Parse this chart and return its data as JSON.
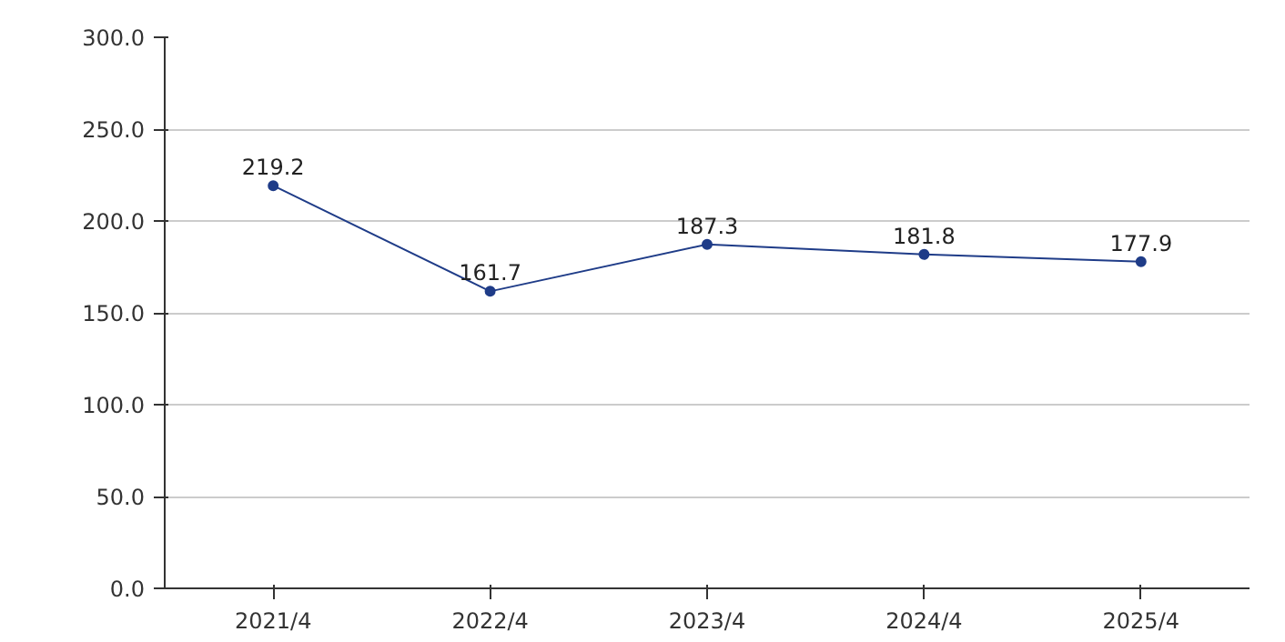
{
  "chart_data": {
    "type": "line",
    "categories": [
      "2021/4",
      "2022/4",
      "2023/4",
      "2024/4",
      "2025/4"
    ],
    "series": [
      {
        "color": "#1f3c88",
        "values": [
          219.2,
          161.7,
          187.3,
          181.8,
          177.9
        ]
      }
    ],
    "ylim": [
      0,
      300
    ],
    "yticks": [
      {
        "value": 0,
        "label": "0.0"
      },
      {
        "value": 50,
        "label": "50.0"
      },
      {
        "value": 100,
        "label": "100.0"
      },
      {
        "value": 150,
        "label": "150.0"
      },
      {
        "value": 200,
        "label": "200.0"
      },
      {
        "value": 250,
        "label": "250.0"
      },
      {
        "value": 300,
        "label": "300.0"
      }
    ],
    "grid": "y",
    "marker": "circle",
    "line_style": "solid",
    "data_labels": true
  }
}
